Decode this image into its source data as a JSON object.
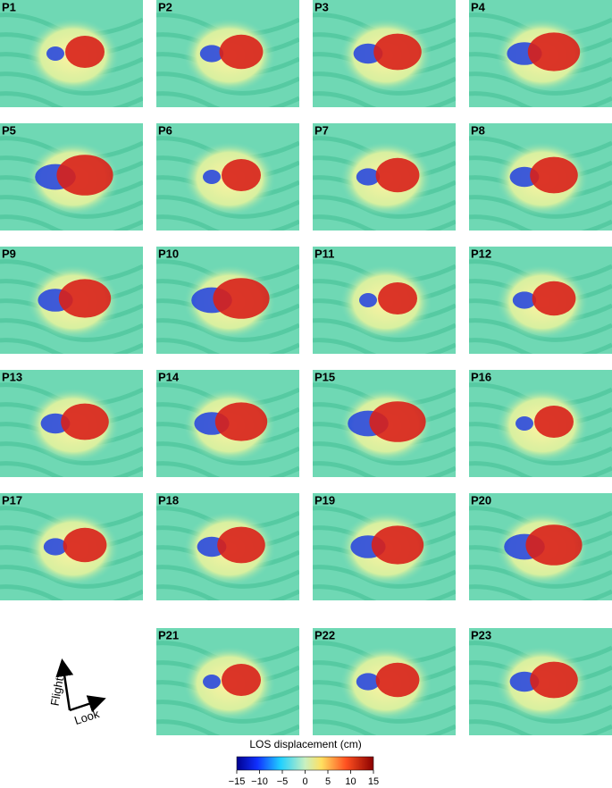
{
  "panels": [
    {
      "label": "P1"
    },
    {
      "label": "P2"
    },
    {
      "label": "P3"
    },
    {
      "label": "P4"
    },
    {
      "label": "P5"
    },
    {
      "label": "P6"
    },
    {
      "label": "P7"
    },
    {
      "label": "P8"
    },
    {
      "label": "P9"
    },
    {
      "label": "P10"
    },
    {
      "label": "P11"
    },
    {
      "label": "P12"
    },
    {
      "label": "P13"
    },
    {
      "label": "P14"
    },
    {
      "label": "P15"
    },
    {
      "label": "P16"
    },
    {
      "label": "P17"
    },
    {
      "label": "P18"
    },
    {
      "label": "P19"
    },
    {
      "label": "P20"
    },
    {
      "label": "P21"
    },
    {
      "label": "P22"
    },
    {
      "label": "P23"
    }
  ],
  "colorbar": {
    "title": "LOS displacement (cm)",
    "lim": [
      -15,
      15
    ],
    "ticks": [
      {
        "value": -15,
        "label": "−15"
      },
      {
        "value": -10,
        "label": "−10"
      },
      {
        "value": -5,
        "label": "−5"
      },
      0,
      5,
      10,
      15
    ]
  },
  "arrows": {
    "flight": "Flight",
    "look": "Look"
  }
}
